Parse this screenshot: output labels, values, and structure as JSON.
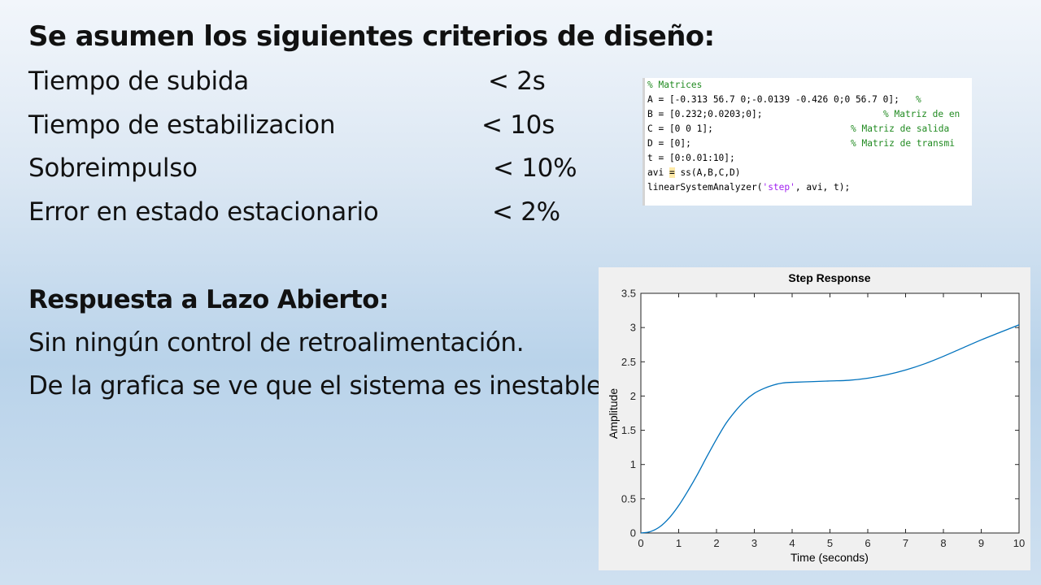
{
  "heading": "Se asumen los siguientes criterios de diseño:",
  "criteria": [
    {
      "label": "Tiempo de subida",
      "value": "<  2s"
    },
    {
      "label": "Tiempo de estabilizacion",
      "value": "<  10s"
    },
    {
      "label": "Sobreimpulso",
      "value": "<  10%"
    },
    {
      "label": "Error en estado estacionario",
      "value": "<  2%"
    }
  ],
  "section": {
    "title": "Respuesta a Lazo Abierto:",
    "line1": "Sin ningún control de retroalimentación.",
    "line2": "De la grafica se ve que el sistema es inestable."
  },
  "code": {
    "line1": "% Matrices",
    "line2_code": "A = [-0.313 56.7 0;-0.0139 -0.426 0;0 56.7 0];   ",
    "line2_cmt": "% ",
    "line3_code": "B = [0.232;0.0203;0];",
    "line3_cmt": "% Matriz de en",
    "line4_code": "C = [0 0 1];",
    "line4_cmt": "% Matriz de salida",
    "line5_code": "D = [0];",
    "line5_cmt": "% Matriz de transmi",
    "line6": "t = [0:0.01:10];",
    "line7_a": "avi ",
    "line7_b": "=",
    "line7_c": " ss(A,B,C,D)",
    "line8_a": "linearSystemAnalyzer(",
    "line8_str": "'step'",
    "line8_b": ", avi, t);"
  },
  "chart_data": {
    "type": "line",
    "title": "Step Response",
    "xlabel": "Time (seconds)",
    "ylabel": "Amplitude",
    "xlim": [
      0,
      10
    ],
    "ylim": [
      0,
      3.5
    ],
    "xticks": [
      0,
      1,
      2,
      3,
      4,
      5,
      6,
      7,
      8,
      9,
      10
    ],
    "yticks": [
      0,
      0.5,
      1,
      1.5,
      2,
      2.5,
      3,
      3.5
    ],
    "grid": false,
    "line_color": "#0072bd",
    "series": [
      {
        "x": [
          0,
          0.25,
          0.5,
          0.75,
          1,
          1.25,
          1.5,
          1.75,
          2,
          2.25,
          2.5,
          2.75,
          3,
          3.25,
          3.5,
          3.75,
          4,
          4.5,
          5,
          5.5,
          6,
          6.5,
          7,
          7.5,
          8,
          8.5,
          9,
          9.5,
          10
        ],
        "values": [
          0,
          0.02,
          0.09,
          0.22,
          0.4,
          0.62,
          0.86,
          1.12,
          1.37,
          1.6,
          1.78,
          1.93,
          2.04,
          2.11,
          2.16,
          2.19,
          2.2,
          2.21,
          2.22,
          2.23,
          2.26,
          2.31,
          2.38,
          2.47,
          2.58,
          2.7,
          2.82,
          2.93,
          3.04
        ]
      }
    ]
  }
}
